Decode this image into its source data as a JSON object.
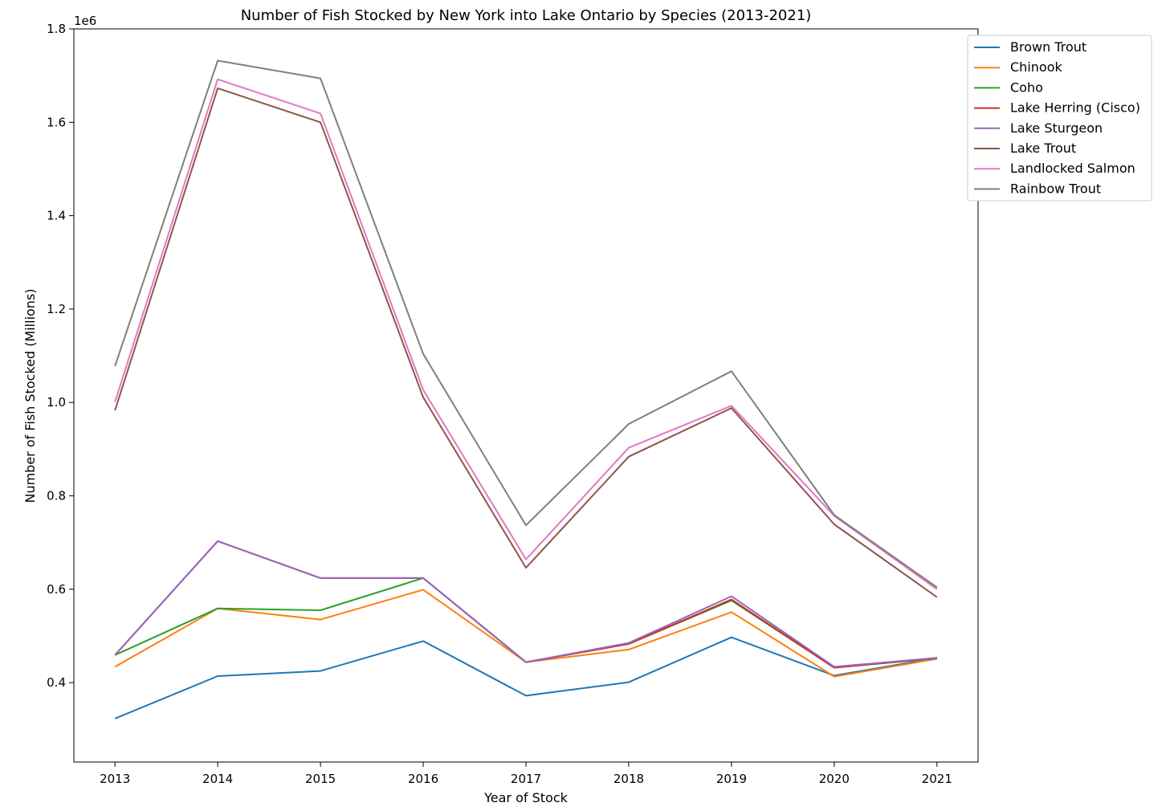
{
  "chart_data": {
    "type": "line",
    "title": "Number of Fish Stocked by New York into Lake Ontario by Species (2013-2021)",
    "xlabel": "Year of Stock",
    "ylabel": "Number of Fish Stocked (Millions)",
    "offset_text": "1e6",
    "x": [
      2013,
      2014,
      2015,
      2016,
      2017,
      2018,
      2019,
      2020,
      2021
    ],
    "xlim": [
      2012.6,
      2021.4
    ],
    "ylim": [
      0.23,
      1.8
    ],
    "yticks": [
      0.4,
      0.6,
      0.8,
      1.0,
      1.2,
      1.4,
      1.6,
      1.8
    ],
    "ytick_labels": [
      "0.4",
      "0.6",
      "0.8",
      "1.0",
      "1.2",
      "1.4",
      "1.6",
      "1.8"
    ],
    "xtick_labels": [
      "2013",
      "2014",
      "2015",
      "2016",
      "2017",
      "2018",
      "2019",
      "2020",
      "2021"
    ],
    "grid": false,
    "legend_position": "upper-right-outside",
    "series": [
      {
        "name": "Brown Trout",
        "color": "#1f77b4",
        "values": [
          0.323,
          0.414,
          0.425,
          0.489,
          0.372,
          0.401,
          0.497,
          0.415,
          0.453
        ]
      },
      {
        "name": "Chinook",
        "color": "#ff7f0e",
        "values": [
          0.434,
          0.559,
          0.535,
          0.599,
          0.444,
          0.471,
          0.551,
          0.413,
          0.451
        ]
      },
      {
        "name": "Coho",
        "color": "#2ca02c",
        "values": [
          0.459,
          0.559,
          0.555,
          0.624,
          0.444,
          0.483,
          0.576,
          0.432,
          0.452
        ]
      },
      {
        "name": "Lake Herring (Cisco)",
        "color": "#d62728",
        "values": [
          0.459,
          0.703,
          0.624,
          0.624,
          0.444,
          0.483,
          0.578,
          0.432,
          0.453
        ]
      },
      {
        "name": "Lake Sturgeon",
        "color": "#9467bd",
        "values": [
          0.459,
          0.703,
          0.624,
          0.624,
          0.444,
          0.485,
          0.585,
          0.434,
          0.453
        ]
      },
      {
        "name": "Lake Trout",
        "color": "#8c564b",
        "values": [
          0.983,
          1.673,
          1.6,
          1.011,
          0.646,
          0.884,
          0.988,
          0.739,
          0.583
        ]
      },
      {
        "name": "Landlocked Salmon",
        "color": "#e377c2",
        "values": [
          1.001,
          1.692,
          1.619,
          1.027,
          0.664,
          0.903,
          0.993,
          0.757,
          0.6
        ]
      },
      {
        "name": "Rainbow Trout",
        "color": "#7f7f7f",
        "values": [
          1.078,
          1.732,
          1.694,
          1.104,
          0.737,
          0.954,
          1.067,
          0.759,
          0.604
        ]
      }
    ]
  }
}
